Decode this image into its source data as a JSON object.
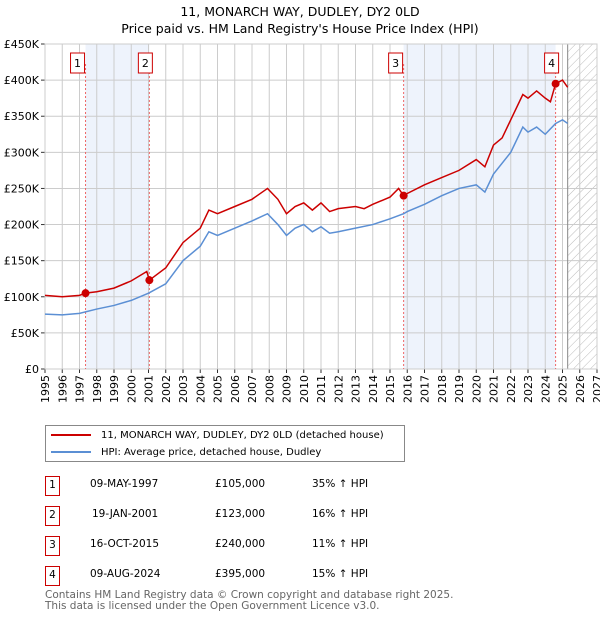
{
  "title_line1": "11, MONARCH WAY, DUDLEY, DY2 0LD",
  "title_line2": "Price paid vs. HM Land Registry's House Price Index (HPI)",
  "chart_data": {
    "type": "line",
    "ylim": [
      0,
      450000
    ],
    "xlim": [
      1995,
      2027
    ],
    "yticks": [
      0,
      50000,
      100000,
      150000,
      200000,
      250000,
      300000,
      350000,
      400000,
      450000
    ],
    "ytick_labels": [
      "£0",
      "£50K",
      "£100K",
      "£150K",
      "£200K",
      "£250K",
      "£300K",
      "£350K",
      "£400K",
      "£450K"
    ],
    "xticks": [
      1995,
      1996,
      1997,
      1998,
      1999,
      2000,
      2001,
      2002,
      2003,
      2004,
      2005,
      2006,
      2007,
      2008,
      2009,
      2010,
      2011,
      2012,
      2013,
      2014,
      2015,
      2016,
      2017,
      2018,
      2019,
      2020,
      2021,
      2022,
      2023,
      2024,
      2025,
      2026,
      2027
    ],
    "grid": true,
    "forecast_hatch_from": 2025.3,
    "shaded_ranges": [
      [
        1997.35,
        2001.05
      ],
      [
        2015.79,
        2024.6
      ]
    ],
    "series": [
      {
        "name": "11, MONARCH WAY, DUDLEY, DY2 0LD (detached house)",
        "color": "#cc0000",
        "x": [
          1995,
          1996,
          1997,
          1997.35,
          1998,
          1999,
          2000,
          2000.9,
          2001.05,
          2002,
          2003,
          2004,
          2004.5,
          2005,
          2006,
          2007,
          2007.9,
          2008.5,
          2009,
          2009.5,
          2010,
          2010.5,
          2011,
          2011.5,
          2012,
          2013,
          2013.5,
          2014,
          2015,
          2015.5,
          2015.79,
          2016,
          2017,
          2018,
          2019,
          2020,
          2020.5,
          2021,
          2021.5,
          2022,
          2022.7,
          2023,
          2023.5,
          2024,
          2024.3,
          2024.6,
          2025,
          2025.3
        ],
        "y": [
          102000,
          100000,
          102000,
          105000,
          107000,
          112000,
          122000,
          135000,
          123000,
          140000,
          175000,
          195000,
          220000,
          215000,
          225000,
          235000,
          250000,
          235000,
          215000,
          225000,
          230000,
          220000,
          230000,
          218000,
          222000,
          225000,
          222000,
          228000,
          238000,
          250000,
          240000,
          243000,
          255000,
          265000,
          275000,
          290000,
          280000,
          310000,
          320000,
          345000,
          380000,
          375000,
          385000,
          375000,
          370000,
          395000,
          400000,
          390000
        ]
      },
      {
        "name": "HPI: Average price, detached house, Dudley",
        "color": "#5b8fd4",
        "x": [
          1995,
          1996,
          1997,
          1998,
          1999,
          2000,
          2001,
          2002,
          2003,
          2004,
          2004.5,
          2005,
          2006,
          2007,
          2007.9,
          2008.5,
          2009,
          2009.5,
          2010,
          2010.5,
          2011,
          2011.5,
          2012,
          2013,
          2014,
          2015,
          2015.79,
          2016,
          2017,
          2018,
          2019,
          2020,
          2020.5,
          2021,
          2022,
          2022.7,
          2023,
          2023.5,
          2024,
          2024.6,
          2025,
          2025.3
        ],
        "y": [
          76000,
          75000,
          77000,
          83000,
          88000,
          95000,
          105000,
          118000,
          150000,
          170000,
          190000,
          185000,
          195000,
          205000,
          215000,
          200000,
          185000,
          195000,
          200000,
          190000,
          197000,
          188000,
          190000,
          195000,
          200000,
          208000,
          215000,
          218000,
          228000,
          240000,
          250000,
          255000,
          245000,
          270000,
          300000,
          335000,
          328000,
          335000,
          325000,
          340000,
          345000,
          340000
        ]
      }
    ],
    "sales": [
      {
        "label": "1",
        "x": 1997.35,
        "y": 105000
      },
      {
        "label": "2",
        "x": 2001.05,
        "y": 123000
      },
      {
        "label": "3",
        "x": 2015.79,
        "y": 240000
      },
      {
        "label": "4",
        "x": 2024.6,
        "y": 395000
      }
    ]
  },
  "legend": {
    "property": "11, MONARCH WAY, DUDLEY, DY2 0LD (detached house)",
    "hpi": "HPI: Average price, detached house, Dudley"
  },
  "transactions": [
    {
      "num": "1",
      "date": "09-MAY-1997",
      "price": "£105,000",
      "hpi": "35% ↑ HPI"
    },
    {
      "num": "2",
      "date": "19-JAN-2001",
      "price": "£123,000",
      "hpi": "16% ↑ HPI"
    },
    {
      "num": "3",
      "date": "16-OCT-2015",
      "price": "£240,000",
      "hpi": "11% ↑ HPI"
    },
    {
      "num": "4",
      "date": "09-AUG-2024",
      "price": "£395,000",
      "hpi": "15% ↑ HPI"
    }
  ],
  "footer_line1": "Contains HM Land Registry data © Crown copyright and database right 2025.",
  "footer_line2": "This data is licensed under the Open Government Licence v3.0."
}
